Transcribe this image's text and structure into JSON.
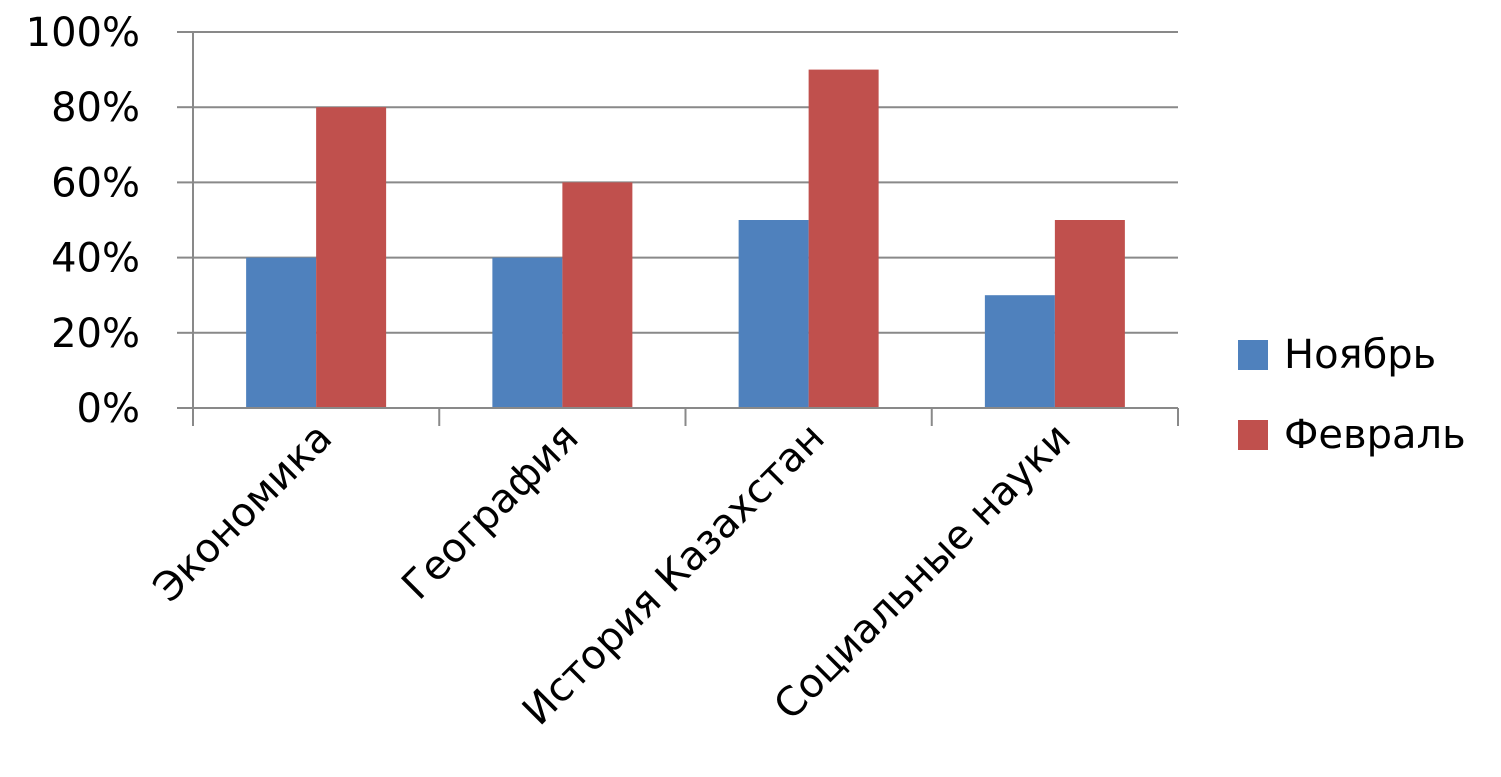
{
  "chart_data": {
    "type": "bar",
    "categories": [
      "Экономика",
      "География",
      "История Казахстан",
      "Социальные науки"
    ],
    "series": [
      {
        "name": "Ноябрь",
        "values": [
          40,
          40,
          50,
          30
        ],
        "color": "#4F81BD"
      },
      {
        "name": "Февраль",
        "values": [
          80,
          60,
          90,
          50
        ],
        "color": "#C0504D"
      }
    ],
    "y_ticks": [
      "0%",
      "20%",
      "40%",
      "60%",
      "80%",
      "100%"
    ],
    "ylim": [
      0,
      100
    ],
    "grid": true,
    "legend_position": "right",
    "gridline_color": "#898989",
    "axis_color": "#898989"
  }
}
